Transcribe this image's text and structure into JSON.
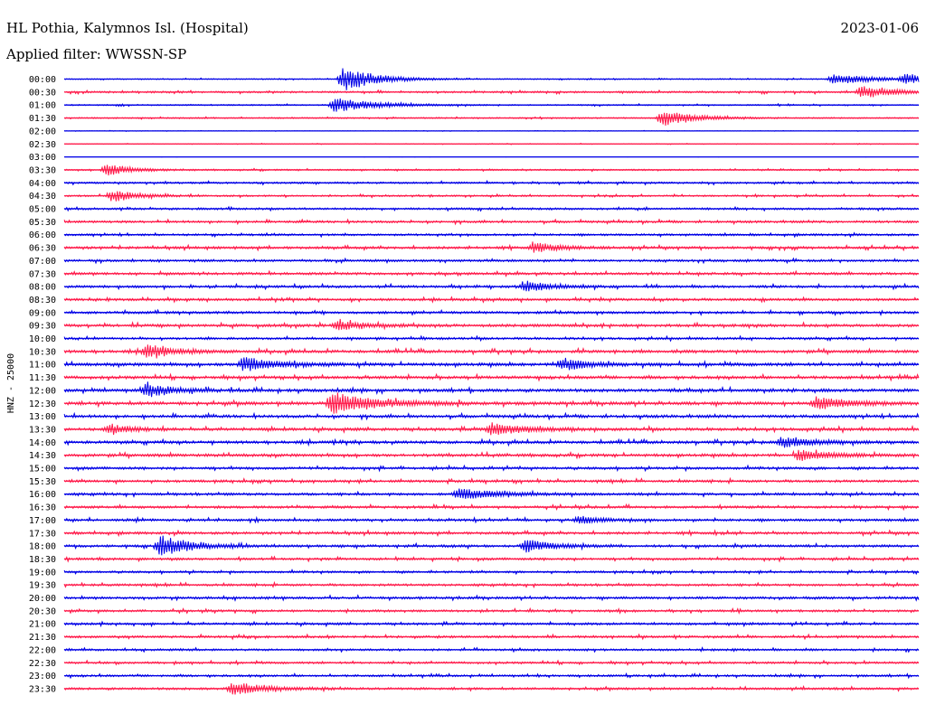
{
  "header": {
    "station": "HL Pothia, Kalymnos Isl. (Hospital)",
    "date": "2023-01-06",
    "filter": "Applied filter: WWSSN-SP"
  },
  "chart_data": {
    "type": "line",
    "title": "HL Pothia, Kalymnos Isl. (Hospital)",
    "subtitle": "Applied filter: WWSSN-SP",
    "date": "2023-01-06",
    "ylabel": "HNZ - 25000",
    "row_labels": [
      "00:00",
      "00:30",
      "01:00",
      "01:30",
      "02:00",
      "02:30",
      "03:00",
      "03:30",
      "04:00",
      "04:30",
      "05:00",
      "05:30",
      "06:00",
      "06:30",
      "07:00",
      "07:30",
      "08:00",
      "08:30",
      "09:00",
      "09:30",
      "10:00",
      "10:30",
      "11:00",
      "11:30",
      "12:00",
      "12:30",
      "13:00",
      "13:30",
      "14:00",
      "14:30",
      "15:00",
      "15:30",
      "16:00",
      "16:30",
      "17:00",
      "17:30",
      "18:00",
      "18:30",
      "19:00",
      "19:30",
      "20:00",
      "20:30",
      "21:00",
      "21:30",
      "22:00",
      "22:30",
      "23:00",
      "23:30"
    ],
    "colors": [
      "#0000e6",
      "#ff1a4a"
    ],
    "noise_levels": [
      0.25,
      0.45,
      0.3,
      0.3,
      0.12,
      0.15,
      0.03,
      0.35,
      0.45,
      0.4,
      0.5,
      0.55,
      0.5,
      0.6,
      0.55,
      0.6,
      0.6,
      0.6,
      0.6,
      0.7,
      0.55,
      0.7,
      0.75,
      0.7,
      0.75,
      0.8,
      0.7,
      0.7,
      0.7,
      0.7,
      0.6,
      0.6,
      0.6,
      0.6,
      0.6,
      0.6,
      0.6,
      0.55,
      0.5,
      0.55,
      0.6,
      0.55,
      0.55,
      0.55,
      0.5,
      0.5,
      0.5,
      0.55
    ],
    "events": [
      {
        "row": 0,
        "minute": 9.8,
        "amplitude": 14,
        "duration": 2
      },
      {
        "row": 0,
        "minute": 27,
        "amplitude": 6,
        "duration": 2.5
      },
      {
        "row": 0,
        "minute": 29.5,
        "amplitude": 6,
        "duration": 1.5
      },
      {
        "row": 1,
        "minute": 28,
        "amplitude": 7,
        "duration": 2
      },
      {
        "row": 2,
        "minute": 9.5,
        "amplitude": 8,
        "duration": 2.5
      },
      {
        "row": 3,
        "minute": 21,
        "amplitude": 9,
        "duration": 2
      },
      {
        "row": 7,
        "minute": 1.5,
        "amplitude": 7,
        "duration": 1.5
      },
      {
        "row": 9,
        "minute": 1.7,
        "amplitude": 7,
        "duration": 1.5
      },
      {
        "row": 13,
        "minute": 16.5,
        "amplitude": 6,
        "duration": 1.5
      },
      {
        "row": 16,
        "minute": 16.2,
        "amplitude": 6,
        "duration": 1.5
      },
      {
        "row": 19,
        "minute": 9.6,
        "amplitude": 5,
        "duration": 1.5
      },
      {
        "row": 21,
        "minute": 2.9,
        "amplitude": 8,
        "duration": 1.5
      },
      {
        "row": 22,
        "minute": 6.3,
        "amplitude": 8,
        "duration": 2
      },
      {
        "row": 22,
        "minute": 17.5,
        "amplitude": 7,
        "duration": 1.5
      },
      {
        "row": 24,
        "minute": 2.9,
        "amplitude": 8,
        "duration": 1.5
      },
      {
        "row": 25,
        "minute": 9.4,
        "amplitude": 13,
        "duration": 2.5
      },
      {
        "row": 25,
        "minute": 26.4,
        "amplitude": 7,
        "duration": 2
      },
      {
        "row": 27,
        "minute": 15,
        "amplitude": 7,
        "duration": 2
      },
      {
        "row": 27,
        "minute": 1.6,
        "amplitude": 6,
        "duration": 1.2
      },
      {
        "row": 28,
        "minute": 25.2,
        "amplitude": 6,
        "duration": 2
      },
      {
        "row": 29,
        "minute": 25.8,
        "amplitude": 6,
        "duration": 2
      },
      {
        "row": 32,
        "minute": 13.8,
        "amplitude": 6,
        "duration": 2.5
      },
      {
        "row": 34,
        "minute": 18.1,
        "amplitude": 5,
        "duration": 1.2
      },
      {
        "row": 36,
        "minute": 3.4,
        "amplitude": 12,
        "duration": 1.8
      },
      {
        "row": 36,
        "minute": 16.2,
        "amplitude": 8,
        "duration": 1.5
      },
      {
        "row": 47,
        "minute": 5.9,
        "amplitude": 7,
        "duration": 2
      }
    ]
  }
}
